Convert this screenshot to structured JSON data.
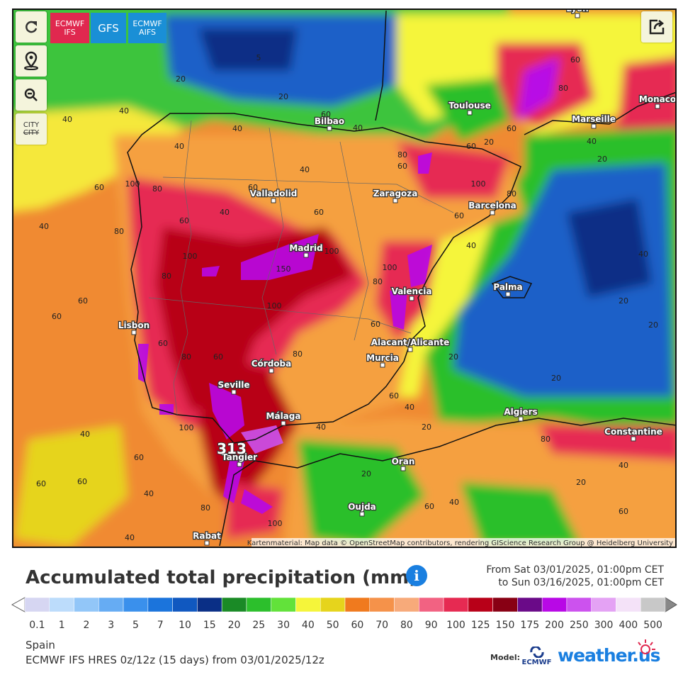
{
  "toolbar": {
    "city_button": {
      "line1": "CITY",
      "line2": "CITY"
    }
  },
  "models": [
    {
      "line1": "ECMWF",
      "line2": "IFS",
      "color": "#e0284f"
    },
    {
      "line1": "GFS",
      "line2": null,
      "color": "#1a8fd6"
    },
    {
      "line1": "ECMWF",
      "line2": "AIFS",
      "color": "#1a8fd6"
    }
  ],
  "map": {
    "cities": [
      "Lyon",
      "Toulouse",
      "Monaco",
      "Marseille",
      "Bilbao",
      "Valladolid",
      "Zaragoza",
      "Barcelona",
      "Madrid",
      "Palma",
      "Valencia",
      "Lisbon",
      "Alacant/Alicante",
      "Murcia",
      "Córdoba",
      "Seville",
      "Málaga",
      "Algiers",
      "Constantine",
      "Oran",
      "Tangier",
      "Oujda",
      "Rabat"
    ],
    "max_label": "313",
    "contour_labels": [
      "5",
      "20",
      "20",
      "40",
      "40",
      "60",
      "40",
      "40",
      "60",
      "40",
      "40",
      "60",
      "40",
      "60",
      "100",
      "80",
      "60",
      "80",
      "40",
      "60",
      "60",
      "80",
      "100",
      "150",
      "100",
      "100",
      "60",
      "80",
      "60",
      "100",
      "80",
      "40",
      "60",
      "80",
      "100",
      "60",
      "80",
      "60",
      "20",
      "60",
      "60",
      "80",
      "40",
      "20",
      "40",
      "20",
      "20",
      "20",
      "20",
      "40",
      "60",
      "20",
      "40",
      "20",
      "60",
      "40",
      "80",
      "20",
      "40",
      "60",
      "40",
      "60",
      "40",
      "80",
      "100",
      "80",
      "60",
      "40",
      "60",
      "100",
      "60"
    ],
    "attribution": "Kartenmaterial: Map data © OpenStreetMap contributors, rendering GIScience Research Group @ Heidelberg University"
  },
  "legend": {
    "title": "Accumulated total precipitation (mm)",
    "info_icon": "i",
    "from": "From Sat 03/01/2025, 01:00pm CET",
    "to": "to Sun 03/16/2025, 01:00pm CET",
    "scale": [
      {
        "label": "0.1",
        "color": "#d6d6f2"
      },
      {
        "label": "1",
        "color": "#bcdcfb"
      },
      {
        "label": "2",
        "color": "#92c6f8"
      },
      {
        "label": "3",
        "color": "#66acf3"
      },
      {
        "label": "5",
        "color": "#3a90ec"
      },
      {
        "label": "7",
        "color": "#1b74dc"
      },
      {
        "label": "10",
        "color": "#1058c0"
      },
      {
        "label": "15",
        "color": "#0a2f86"
      },
      {
        "label": "20",
        "color": "#1a8a26"
      },
      {
        "label": "25",
        "color": "#2cbf2c"
      },
      {
        "label": "30",
        "color": "#62e23a"
      },
      {
        "label": "40",
        "color": "#f5f53a"
      },
      {
        "label": "50",
        "color": "#e6d41c"
      },
      {
        "label": "60",
        "color": "#f07a1e"
      },
      {
        "label": "70",
        "color": "#f5924a"
      },
      {
        "label": "80",
        "color": "#f7aa7a"
      },
      {
        "label": "90",
        "color": "#f26282"
      },
      {
        "label": "100",
        "color": "#e62a52"
      },
      {
        "label": "125",
        "color": "#b80018"
      },
      {
        "label": "150",
        "color": "#880014"
      },
      {
        "label": "175",
        "color": "#6a0a88"
      },
      {
        "label": "200",
        "color": "#b808e6"
      },
      {
        "label": "250",
        "color": "#cc52ee"
      },
      {
        "label": "300",
        "color": "#e4a2f4"
      },
      {
        "label": "400",
        "color": "#f4e2f8"
      },
      {
        "label": "500",
        "color": "#c8c8c8"
      }
    ]
  },
  "footer": {
    "region": "Spain",
    "run": "ECMWF IFS HRES 0z/12z (15 days) from 03/01/2025/12z",
    "model_label": "Model:",
    "model_logo": "ECMWF",
    "brand": "weather.us"
  }
}
